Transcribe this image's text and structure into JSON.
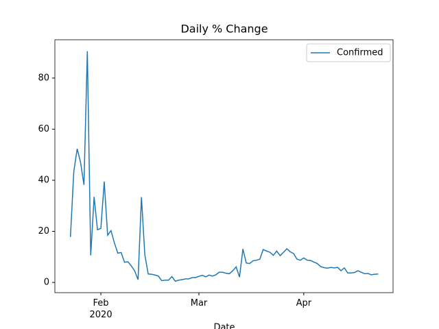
{
  "chart_data": {
    "type": "line",
    "title": "Daily % Change",
    "xlabel": "Date",
    "series": [
      {
        "name": "Confirmed",
        "color": "#1f77b4",
        "values": [
          17.8,
          43.5,
          52.3,
          47,
          38.2,
          90.5,
          10.6,
          33.5,
          20.6,
          21.2,
          39.5,
          18.5,
          20.3,
          15.5,
          11.5,
          11.7,
          7.9,
          8.1,
          6.5,
          4.5,
          1.1,
          33.4,
          10.8,
          3.3,
          3.2,
          2.9,
          2.5,
          0.7,
          0.9,
          0.9,
          2.3,
          0.5,
          0.9,
          1.1,
          1.4,
          1.4,
          1.9,
          1.9,
          2.4,
          2.8,
          2.2,
          2.9,
          2.5,
          3.0,
          4.0,
          4.0,
          3.6,
          3.4,
          4.6,
          6.1,
          2.1,
          13.1,
          7.6,
          7.4,
          8.5,
          8.7,
          9.1,
          12.9,
          12.3,
          11.8,
          10.6,
          12.3,
          10.5,
          11.8,
          13.2,
          12.0,
          11.3,
          9.1,
          8.7,
          9.6,
          8.7,
          8.6,
          8.0,
          7.4,
          6.2,
          5.8,
          5.6,
          5.9,
          5.7,
          5.9,
          4.6,
          5.7,
          3.7,
          3.7,
          3.9,
          4.6,
          4.0,
          3.4,
          3.5,
          3.0,
          3.2,
          3.3
        ]
      }
    ],
    "xlim": [
      -4.6,
      95.4
    ],
    "xticks": [
      {
        "value": 9,
        "label": "Feb\n2020"
      },
      {
        "value": 38,
        "label": "Mar"
      },
      {
        "value": 69,
        "label": "Apr"
      }
    ],
    "ylim": [
      -4.0,
      95.0
    ],
    "yticks": [
      0,
      20,
      40,
      60,
      80
    ],
    "grid": false,
    "legend": "upper right"
  }
}
